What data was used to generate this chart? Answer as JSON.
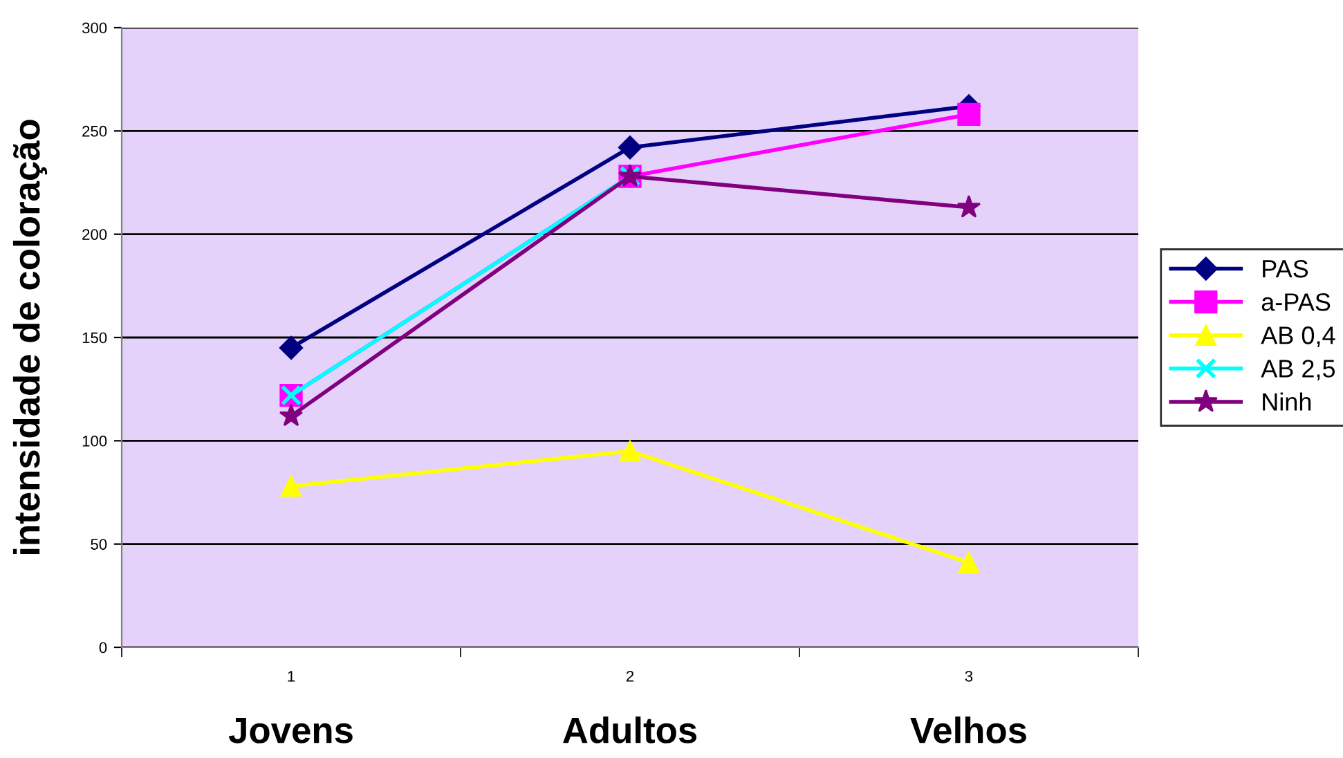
{
  "chart_data": {
    "type": "line",
    "ylabel": "intensidade de coloração",
    "categories": [
      "1",
      "2",
      "3"
    ],
    "series": [
      {
        "name": "PAS",
        "color": "#000080",
        "marker": "diamond",
        "values": [
          145,
          242,
          262
        ]
      },
      {
        "name": "a-PAS",
        "color": "#ff00ff",
        "marker": "square",
        "values": [
          122,
          228,
          258
        ]
      },
      {
        "name": "AB 0,4",
        "color": "#ffff00",
        "marker": "triangle",
        "values": [
          78,
          95,
          41
        ]
      },
      {
        "name": "AB 2,5",
        "color": "#00ffff",
        "marker": "cross",
        "values": [
          122,
          228,
          null
        ]
      },
      {
        "name": "Ninh",
        "color": "#800080",
        "marker": "star",
        "values": [
          112,
          228,
          213
        ]
      }
    ],
    "ylim": [
      0,
      300
    ],
    "yticks": [
      0,
      50,
      100,
      150,
      200,
      250,
      300
    ],
    "grid": "y",
    "legend": "right",
    "annotations": [
      "Jovens",
      "Adultos",
      "Velhos"
    ]
  }
}
